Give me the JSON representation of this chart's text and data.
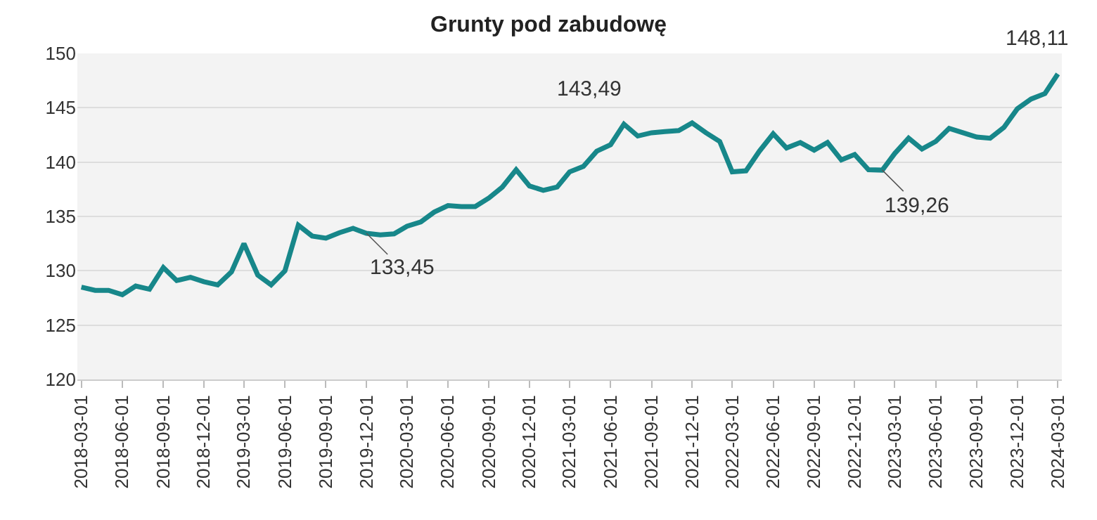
{
  "chart_data": {
    "type": "line",
    "title": "Grunty pod zabudowę",
    "x": [
      "2018-03-01",
      "2018-04-01",
      "2018-05-01",
      "2018-06-01",
      "2018-07-01",
      "2018-08-01",
      "2018-09-01",
      "2018-10-01",
      "2018-11-01",
      "2018-12-01",
      "2019-01-01",
      "2019-02-01",
      "2019-03-01",
      "2019-04-01",
      "2019-05-01",
      "2019-06-01",
      "2019-07-01",
      "2019-08-01",
      "2019-09-01",
      "2019-10-01",
      "2019-11-01",
      "2019-12-01",
      "2020-01-01",
      "2020-02-01",
      "2020-03-01",
      "2020-04-01",
      "2020-05-01",
      "2020-06-01",
      "2020-07-01",
      "2020-08-01",
      "2020-09-01",
      "2020-10-01",
      "2020-11-01",
      "2020-12-01",
      "2021-01-01",
      "2021-02-01",
      "2021-03-01",
      "2021-04-01",
      "2021-05-01",
      "2021-06-01",
      "2021-07-01",
      "2021-08-01",
      "2021-09-01",
      "2021-10-01",
      "2021-11-01",
      "2021-12-01",
      "2022-01-01",
      "2022-02-01",
      "2022-03-01",
      "2022-04-01",
      "2022-05-01",
      "2022-06-01",
      "2022-07-01",
      "2022-08-01",
      "2022-09-01",
      "2022-10-01",
      "2022-11-01",
      "2022-12-01",
      "2023-01-01",
      "2023-02-01",
      "2023-03-01",
      "2023-04-01",
      "2023-05-01",
      "2023-06-01",
      "2023-07-01",
      "2023-08-01",
      "2023-09-01",
      "2023-10-01",
      "2023-11-01",
      "2023-12-01",
      "2024-01-01",
      "2024-02-01",
      "2024-03-01"
    ],
    "series": [
      {
        "color": "#17878a",
        "values": [
          128.5,
          128.2,
          128.2,
          127.8,
          128.6,
          128.3,
          130.3,
          129.1,
          129.4,
          129.0,
          128.7,
          129.9,
          132.5,
          129.6,
          128.7,
          130.0,
          134.2,
          133.2,
          133.0,
          133.5,
          133.9,
          133.45,
          133.3,
          133.4,
          134.1,
          134.5,
          135.4,
          136.0,
          135.9,
          135.9,
          136.7,
          137.7,
          139.3,
          137.8,
          137.4,
          137.7,
          139.1,
          139.6,
          141.0,
          141.6,
          143.49,
          142.4,
          142.7,
          142.8,
          142.9,
          143.6,
          142.7,
          141.9,
          139.1,
          139.2,
          141.0,
          142.6,
          141.3,
          141.8,
          141.1,
          141.8,
          140.2,
          140.7,
          139.3,
          139.26,
          140.8,
          142.2,
          141.2,
          141.9,
          143.1,
          142.7,
          142.3,
          142.2,
          143.2,
          144.9,
          145.8,
          146.3,
          148.11
        ]
      }
    ],
    "xlim": [
      "2018-02-20",
      "2024-03-10"
    ],
    "xticks": [
      "2018-03-01",
      "2018-06-01",
      "2018-09-01",
      "2018-12-01",
      "2019-03-01",
      "2019-06-01",
      "2019-09-01",
      "2019-12-01",
      "2020-03-01",
      "2020-06-01",
      "2020-09-01",
      "2020-12-01",
      "2021-03-01",
      "2021-06-01",
      "2021-09-01",
      "2021-12-01",
      "2022-03-01",
      "2022-06-01",
      "2022-09-01",
      "2022-12-01",
      "2023-03-01",
      "2023-06-01",
      "2023-09-01",
      "2023-12-01",
      "2024-03-01"
    ],
    "ylim": [
      120,
      150
    ],
    "yticks": [
      120,
      125,
      130,
      135,
      140,
      145,
      150
    ],
    "grid": "y",
    "marker": "none",
    "line_style": "solid",
    "annotations": [
      {
        "text": "133,45",
        "x": "2019-12-01",
        "y": 133.45
      },
      {
        "text": "143,49",
        "x": "2021-07-01",
        "y": 143.49
      },
      {
        "text": "139,26",
        "x": "2023-02-01",
        "y": 139.26
      },
      {
        "text": "148,11",
        "x": "2024-03-01",
        "y": 148.11
      }
    ]
  }
}
